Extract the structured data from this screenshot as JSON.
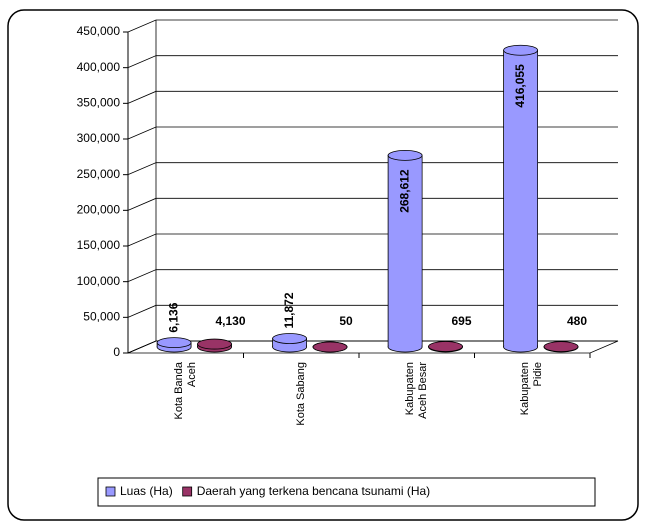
{
  "chart_data": {
    "type": "bar3d",
    "categories": [
      "Kota Banda Aceh",
      "Kota Sabang",
      "Kabupaten Aceh Besar",
      "Kabupaten Pidie"
    ],
    "series": [
      {
        "name": "Luas (Ha)",
        "color": "#9999ff",
        "values": [
          6136,
          11872,
          268612,
          416055
        ],
        "value_labels": [
          "6,136",
          "11,872",
          "268,612",
          "416,055"
        ]
      },
      {
        "name": "Daerah yang terkena bencana tsunami (Ha)",
        "color": "#993366",
        "values": [
          4130,
          50,
          695,
          480
        ],
        "value_labels": [
          "4,130",
          "50",
          "695",
          "480"
        ]
      }
    ],
    "ylim": [
      0,
      450000
    ],
    "yticks": [
      0,
      {
        "value": 50000,
        "label": "50,000"
      },
      {
        "value": 100000,
        "label": "100,000"
      },
      {
        "value": 150000,
        "label": "150,000"
      },
      {
        "value": 200000,
        "label": "200,000"
      },
      {
        "value": 250000,
        "label": "250,000"
      },
      {
        "value": 300000,
        "label": "300,000"
      },
      {
        "value": 350000,
        "label": "350,000"
      },
      {
        "value": 400000,
        "label": "400,000"
      },
      {
        "value": 450000,
        "label": "450,000"
      }
    ],
    "grid": true,
    "legend": "bottom"
  }
}
